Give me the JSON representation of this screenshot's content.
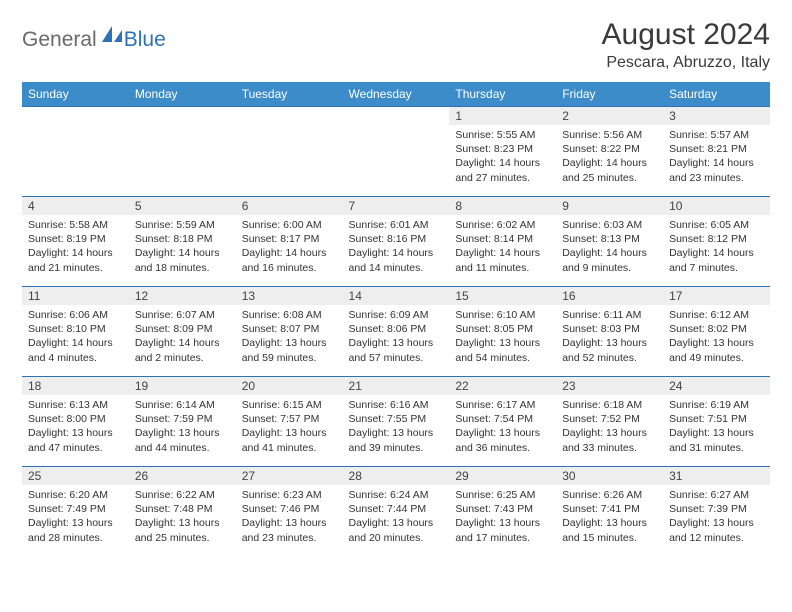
{
  "logo": {
    "general": "General",
    "blue": "Blue"
  },
  "title": "August 2024",
  "location": "Pescara, Abruzzo, Italy",
  "weekdays": [
    "Sunday",
    "Monday",
    "Tuesday",
    "Wednesday",
    "Thursday",
    "Friday",
    "Saturday"
  ],
  "colors": {
    "header_bg": "#3c8cc9",
    "header_text": "#ffffff",
    "border": "#2d72b5",
    "daynum_bg": "#eeeeee",
    "text": "#333333"
  },
  "fonts": {
    "title_size": 30,
    "location_size": 16,
    "weekday_size": 12,
    "daynum_size": 12,
    "body_size": 10.5
  },
  "weeks": [
    [
      null,
      null,
      null,
      null,
      {
        "n": "1",
        "sr": "Sunrise: 5:55 AM",
        "ss": "Sunset: 8:23 PM",
        "dl": "Daylight: 14 hours and 27 minutes."
      },
      {
        "n": "2",
        "sr": "Sunrise: 5:56 AM",
        "ss": "Sunset: 8:22 PM",
        "dl": "Daylight: 14 hours and 25 minutes."
      },
      {
        "n": "3",
        "sr": "Sunrise: 5:57 AM",
        "ss": "Sunset: 8:21 PM",
        "dl": "Daylight: 14 hours and 23 minutes."
      }
    ],
    [
      {
        "n": "4",
        "sr": "Sunrise: 5:58 AM",
        "ss": "Sunset: 8:19 PM",
        "dl": "Daylight: 14 hours and 21 minutes."
      },
      {
        "n": "5",
        "sr": "Sunrise: 5:59 AM",
        "ss": "Sunset: 8:18 PM",
        "dl": "Daylight: 14 hours and 18 minutes."
      },
      {
        "n": "6",
        "sr": "Sunrise: 6:00 AM",
        "ss": "Sunset: 8:17 PM",
        "dl": "Daylight: 14 hours and 16 minutes."
      },
      {
        "n": "7",
        "sr": "Sunrise: 6:01 AM",
        "ss": "Sunset: 8:16 PM",
        "dl": "Daylight: 14 hours and 14 minutes."
      },
      {
        "n": "8",
        "sr": "Sunrise: 6:02 AM",
        "ss": "Sunset: 8:14 PM",
        "dl": "Daylight: 14 hours and 11 minutes."
      },
      {
        "n": "9",
        "sr": "Sunrise: 6:03 AM",
        "ss": "Sunset: 8:13 PM",
        "dl": "Daylight: 14 hours and 9 minutes."
      },
      {
        "n": "10",
        "sr": "Sunrise: 6:05 AM",
        "ss": "Sunset: 8:12 PM",
        "dl": "Daylight: 14 hours and 7 minutes."
      }
    ],
    [
      {
        "n": "11",
        "sr": "Sunrise: 6:06 AM",
        "ss": "Sunset: 8:10 PM",
        "dl": "Daylight: 14 hours and 4 minutes."
      },
      {
        "n": "12",
        "sr": "Sunrise: 6:07 AM",
        "ss": "Sunset: 8:09 PM",
        "dl": "Daylight: 14 hours and 2 minutes."
      },
      {
        "n": "13",
        "sr": "Sunrise: 6:08 AM",
        "ss": "Sunset: 8:07 PM",
        "dl": "Daylight: 13 hours and 59 minutes."
      },
      {
        "n": "14",
        "sr": "Sunrise: 6:09 AM",
        "ss": "Sunset: 8:06 PM",
        "dl": "Daylight: 13 hours and 57 minutes."
      },
      {
        "n": "15",
        "sr": "Sunrise: 6:10 AM",
        "ss": "Sunset: 8:05 PM",
        "dl": "Daylight: 13 hours and 54 minutes."
      },
      {
        "n": "16",
        "sr": "Sunrise: 6:11 AM",
        "ss": "Sunset: 8:03 PM",
        "dl": "Daylight: 13 hours and 52 minutes."
      },
      {
        "n": "17",
        "sr": "Sunrise: 6:12 AM",
        "ss": "Sunset: 8:02 PM",
        "dl": "Daylight: 13 hours and 49 minutes."
      }
    ],
    [
      {
        "n": "18",
        "sr": "Sunrise: 6:13 AM",
        "ss": "Sunset: 8:00 PM",
        "dl": "Daylight: 13 hours and 47 minutes."
      },
      {
        "n": "19",
        "sr": "Sunrise: 6:14 AM",
        "ss": "Sunset: 7:59 PM",
        "dl": "Daylight: 13 hours and 44 minutes."
      },
      {
        "n": "20",
        "sr": "Sunrise: 6:15 AM",
        "ss": "Sunset: 7:57 PM",
        "dl": "Daylight: 13 hours and 41 minutes."
      },
      {
        "n": "21",
        "sr": "Sunrise: 6:16 AM",
        "ss": "Sunset: 7:55 PM",
        "dl": "Daylight: 13 hours and 39 minutes."
      },
      {
        "n": "22",
        "sr": "Sunrise: 6:17 AM",
        "ss": "Sunset: 7:54 PM",
        "dl": "Daylight: 13 hours and 36 minutes."
      },
      {
        "n": "23",
        "sr": "Sunrise: 6:18 AM",
        "ss": "Sunset: 7:52 PM",
        "dl": "Daylight: 13 hours and 33 minutes."
      },
      {
        "n": "24",
        "sr": "Sunrise: 6:19 AM",
        "ss": "Sunset: 7:51 PM",
        "dl": "Daylight: 13 hours and 31 minutes."
      }
    ],
    [
      {
        "n": "25",
        "sr": "Sunrise: 6:20 AM",
        "ss": "Sunset: 7:49 PM",
        "dl": "Daylight: 13 hours and 28 minutes."
      },
      {
        "n": "26",
        "sr": "Sunrise: 6:22 AM",
        "ss": "Sunset: 7:48 PM",
        "dl": "Daylight: 13 hours and 25 minutes."
      },
      {
        "n": "27",
        "sr": "Sunrise: 6:23 AM",
        "ss": "Sunset: 7:46 PM",
        "dl": "Daylight: 13 hours and 23 minutes."
      },
      {
        "n": "28",
        "sr": "Sunrise: 6:24 AM",
        "ss": "Sunset: 7:44 PM",
        "dl": "Daylight: 13 hours and 20 minutes."
      },
      {
        "n": "29",
        "sr": "Sunrise: 6:25 AM",
        "ss": "Sunset: 7:43 PM",
        "dl": "Daylight: 13 hours and 17 minutes."
      },
      {
        "n": "30",
        "sr": "Sunrise: 6:26 AM",
        "ss": "Sunset: 7:41 PM",
        "dl": "Daylight: 13 hours and 15 minutes."
      },
      {
        "n": "31",
        "sr": "Sunrise: 6:27 AM",
        "ss": "Sunset: 7:39 PM",
        "dl": "Daylight: 13 hours and 12 minutes."
      }
    ]
  ]
}
